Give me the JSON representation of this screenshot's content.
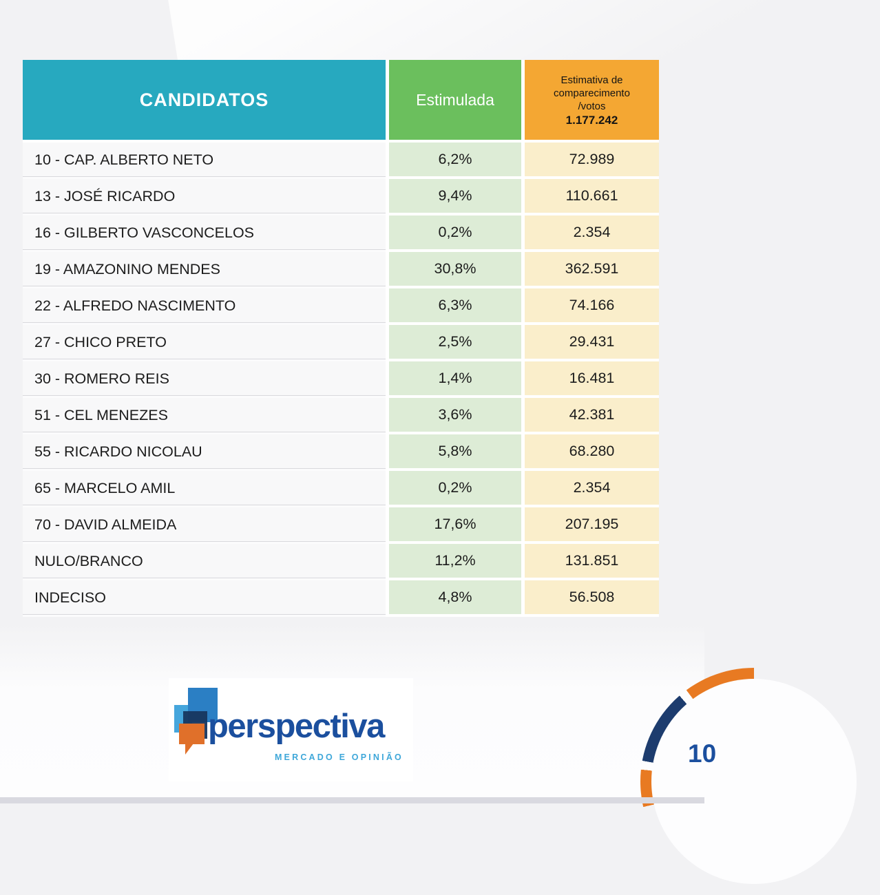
{
  "page": {
    "page_number": "10"
  },
  "table": {
    "header": {
      "candidates": "CANDIDATOS",
      "stimulated": "Estimulada",
      "estimate_line1": "Estimativa de",
      "estimate_line2": "comparecimento",
      "estimate_line3": "/votos",
      "estimate_total": "1.177.242"
    },
    "rows": [
      {
        "candidate": "10 - CAP. ALBERTO NETO",
        "stimulated": "6,2%",
        "votes": "72.989"
      },
      {
        "candidate": "13 - JOSÉ RICARDO",
        "stimulated": "9,4%",
        "votes": "110.661"
      },
      {
        "candidate": "16 - GILBERTO VASCONCELOS",
        "stimulated": "0,2%",
        "votes": "2.354"
      },
      {
        "candidate": "19 - AMAZONINO MENDES",
        "stimulated": "30,8%",
        "votes": "362.591"
      },
      {
        "candidate": "22 - ALFREDO NASCIMENTO",
        "stimulated": "6,3%",
        "votes": "74.166"
      },
      {
        "candidate": "27 - CHICO PRETO",
        "stimulated": "2,5%",
        "votes": "29.431"
      },
      {
        "candidate": "30 - ROMERO REIS",
        "stimulated": "1,4%",
        "votes": "16.481"
      },
      {
        "candidate": "51 - CEL MENEZES",
        "stimulated": "3,6%",
        "votes": "42.381"
      },
      {
        "candidate": "55 - RICARDO NICOLAU",
        "stimulated": "5,8%",
        "votes": "68.280"
      },
      {
        "candidate": "65 - MARCELO AMIL",
        "stimulated": "0,2%",
        "votes": "2.354"
      },
      {
        "candidate": "70 - DAVID ALMEIDA",
        "stimulated": "17,6%",
        "votes": "207.195"
      },
      {
        "candidate": "NULO/BRANCO",
        "stimulated": "11,2%",
        "votes": "131.851"
      },
      {
        "candidate": "INDECISO",
        "stimulated": "4,8%",
        "votes": "56.508"
      }
    ]
  },
  "logo": {
    "brand": "perspectiva",
    "tagline": "MERCADO E OPINIÃO"
  },
  "colors": {
    "header_teal": "#27a9bf",
    "header_green": "#6bbf5d",
    "header_orange": "#f4a733",
    "cell_green": "#ddecd6",
    "cell_cream": "#faeecb",
    "arc_orange": "#e87a22",
    "arc_navy": "#1d3c6e",
    "brand_blue": "#1b4f9e",
    "brand_lightblue": "#3ea7d9"
  }
}
